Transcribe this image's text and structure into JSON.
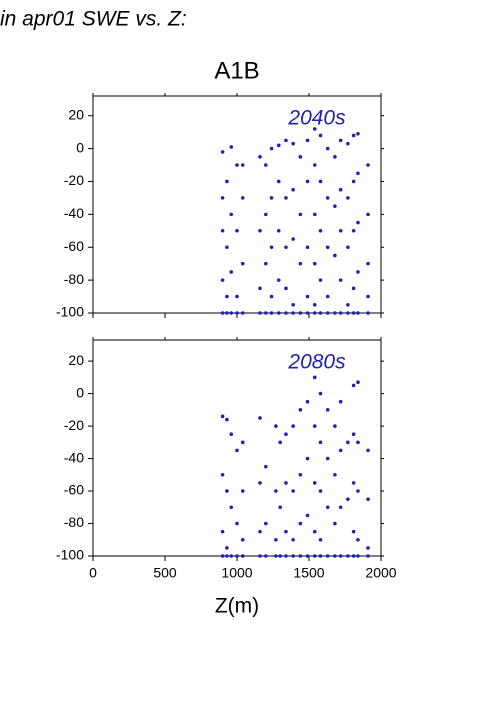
{
  "header": {
    "title": "in apr01 SWE vs. Z:",
    "suptitle": "A1B"
  },
  "chart_data": [
    {
      "type": "scatter",
      "annotation": "2040s",
      "color": "#2020b8",
      "xlim": [
        0,
        2000
      ],
      "xticks": [
        0,
        500,
        1000,
        1500,
        2000
      ],
      "xtick_labels": false,
      "ylim": [
        -100,
        32
      ],
      "yticks": [
        -100,
        -80,
        -60,
        -40,
        -20,
        0,
        20
      ],
      "x": [
        900,
        900,
        900,
        900,
        900,
        930,
        930,
        930,
        930,
        960,
        960,
        960,
        960,
        1000,
        1000,
        1000,
        1000,
        1040,
        1040,
        1040,
        1040,
        1160,
        1160,
        1160,
        1160,
        1200,
        1200,
        1200,
        1200,
        1240,
        1240,
        1240,
        1240,
        1240,
        1290,
        1290,
        1290,
        1290,
        1290,
        1340,
        1340,
        1340,
        1340,
        1340,
        1390,
        1390,
        1390,
        1390,
        1390,
        1440,
        1440,
        1440,
        1440,
        1490,
        1490,
        1490,
        1490,
        1490,
        1540,
        1540,
        1540,
        1540,
        1540,
        1540,
        1580,
        1580,
        1580,
        1580,
        1580,
        1630,
        1630,
        1630,
        1630,
        1630,
        1680,
        1680,
        1680,
        1680,
        1720,
        1720,
        1720,
        1720,
        1720,
        1770,
        1770,
        1770,
        1770,
        1770,
        1810,
        1810,
        1810,
        1810,
        1810,
        1840,
        1840,
        1840,
        1840,
        1840,
        1910,
        1910,
        1910,
        1910,
        1910
      ],
      "y": [
        -100,
        -80,
        -50,
        -2,
        -30,
        -100,
        -20,
        -60,
        -90,
        -100,
        1,
        -40,
        -75,
        -100,
        -10,
        -50,
        -90,
        -100,
        -10,
        -30,
        -70,
        -100,
        -5,
        -50,
        -85,
        -100,
        -10,
        -40,
        -70,
        -100,
        0,
        -30,
        -60,
        -90,
        -100,
        2,
        -20,
        -50,
        -80,
        -100,
        5,
        -30,
        -60,
        -85,
        -100,
        3,
        -25,
        -55,
        -95,
        -100,
        -5,
        -40,
        -70,
        -100,
        5,
        -20,
        -60,
        -90,
        -100,
        12,
        -10,
        -40,
        -70,
        -95,
        -100,
        8,
        -20,
        -50,
        -80,
        -100,
        0,
        -30,
        -60,
        -90,
        -100,
        -5,
        -35,
        -65,
        -100,
        5,
        -25,
        -50,
        -80,
        -100,
        3,
        -30,
        -60,
        -95,
        -100,
        8,
        -20,
        -50,
        -85,
        -100,
        9,
        -15,
        -45,
        -75,
        -100,
        -10,
        -40,
        -70,
        -90
      ]
    },
    {
      "type": "scatter",
      "annotation": "2080s",
      "color": "#2020b8",
      "xlabel": "Z(m)",
      "xlim": [
        0,
        2000
      ],
      "xticks": [
        0,
        500,
        1000,
        1500,
        2000
      ],
      "xtick_labels": true,
      "ylim": [
        -100,
        33
      ],
      "yticks": [
        -100,
        -80,
        -60,
        -40,
        -20,
        0,
        20
      ],
      "x": [
        900,
        900,
        900,
        900,
        930,
        930,
        930,
        930,
        960,
        960,
        960,
        1000,
        1000,
        1000,
        1040,
        1040,
        1040,
        1040,
        1160,
        1160,
        1160,
        1160,
        1200,
        1200,
        1200,
        1270,
        1270,
        1270,
        1270,
        1300,
        1300,
        1300,
        1340,
        1340,
        1340,
        1340,
        1390,
        1390,
        1390,
        1390,
        1440,
        1440,
        1440,
        1440,
        1490,
        1490,
        1490,
        1490,
        1540,
        1540,
        1540,
        1540,
        1540,
        1580,
        1580,
        1580,
        1580,
        1580,
        1630,
        1630,
        1630,
        1630,
        1680,
        1680,
        1680,
        1680,
        1720,
        1720,
        1720,
        1720,
        1770,
        1770,
        1770,
        1810,
        1810,
        1810,
        1810,
        1810,
        1840,
        1840,
        1840,
        1840,
        1840,
        1910,
        1910,
        1910,
        1910
      ],
      "y": [
        -100,
        -14,
        -50,
        -85,
        -100,
        -16,
        -60,
        -95,
        -100,
        -25,
        -70,
        -100,
        -35,
        -80,
        -100,
        -30,
        -60,
        -90,
        -100,
        -15,
        -55,
        -85,
        -100,
        -45,
        -80,
        -100,
        -20,
        -60,
        -90,
        -100,
        -30,
        -70,
        -100,
        -25,
        -55,
        -85,
        -100,
        -20,
        -60,
        -90,
        -100,
        -10,
        -50,
        -80,
        -100,
        -5,
        -40,
        -75,
        -100,
        10,
        -20,
        -55,
        -85,
        -100,
        0,
        -30,
        -60,
        -90,
        -100,
        -10,
        -40,
        -70,
        -100,
        -20,
        -50,
        -80,
        -100,
        -5,
        -35,
        -70,
        -100,
        -30,
        -65,
        -100,
        5,
        -25,
        -55,
        -85,
        -100,
        7,
        -30,
        -60,
        -90,
        -100,
        -35,
        -65,
        -95
      ]
    }
  ]
}
